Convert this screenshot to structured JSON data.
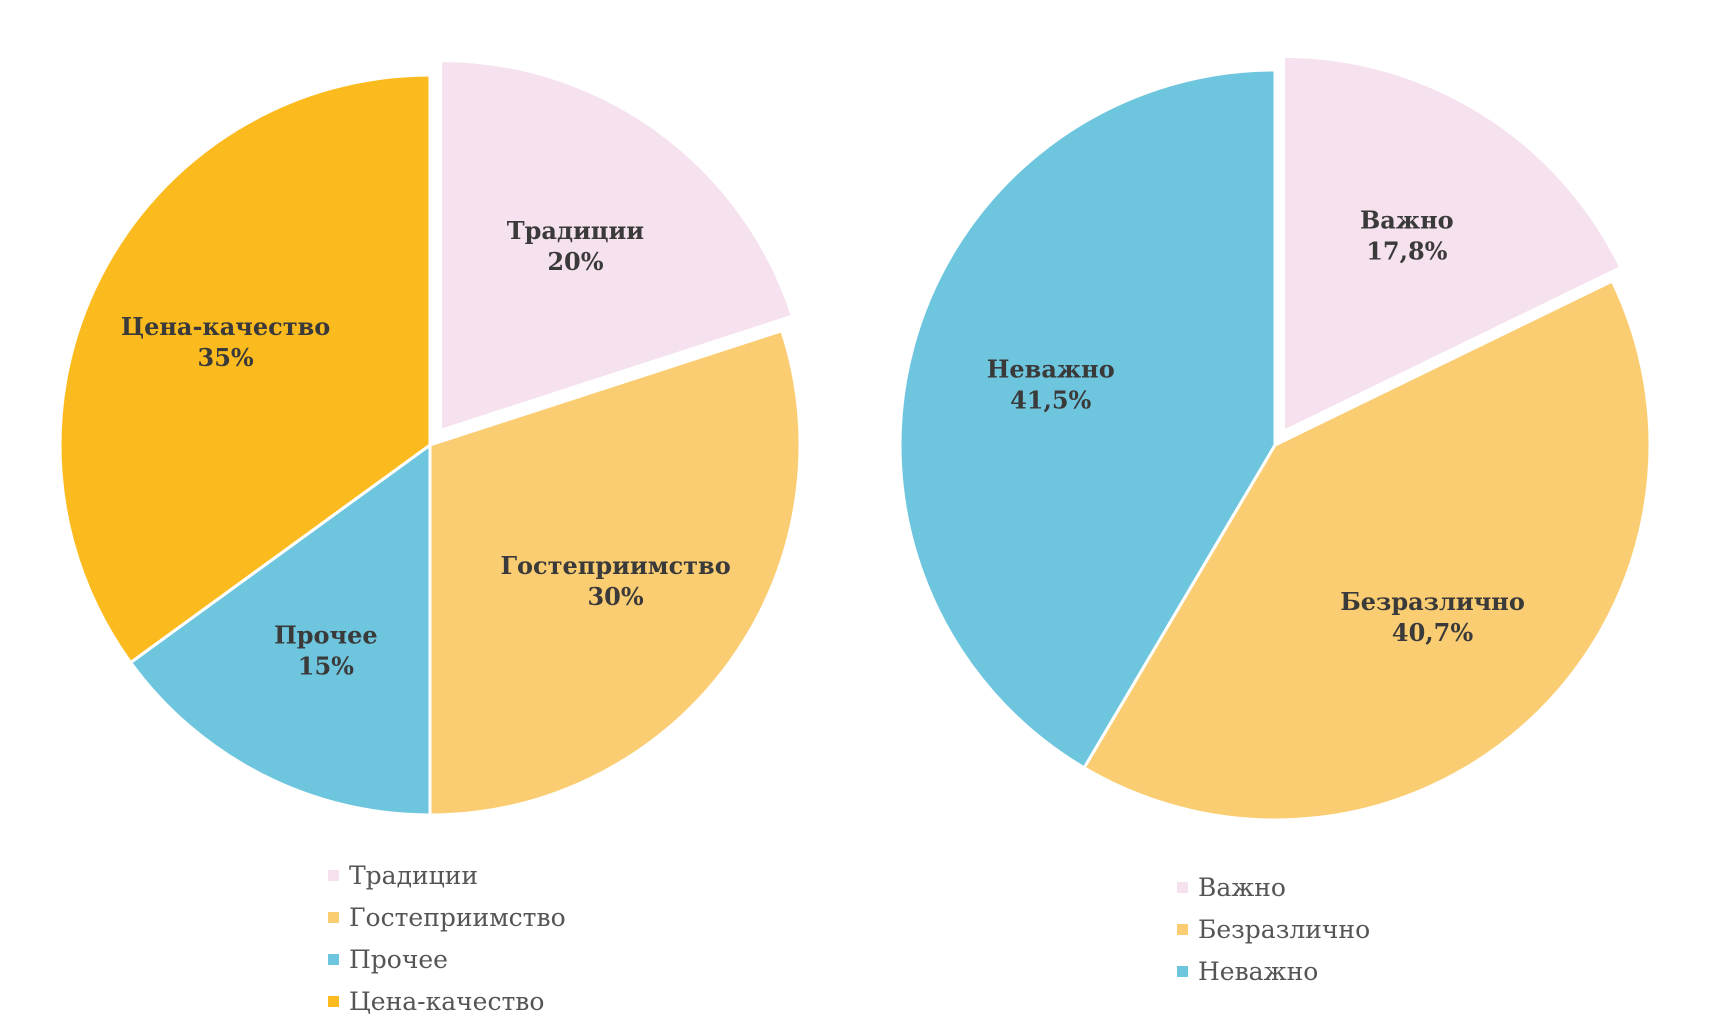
{
  "chart_data": [
    {
      "type": "pie",
      "slices": [
        {
          "label": "Традиции",
          "value": 20,
          "value_label": "20%",
          "color": "#f6e1ef",
          "exploded": true
        },
        {
          "label": "Гостеприимство",
          "value": 30,
          "value_label": "30%",
          "color": "#fbcd72",
          "exploded": false
        },
        {
          "label": "Прочее",
          "value": 15,
          "value_label": "15%",
          "color": "#6ec6de",
          "exploded": false
        },
        {
          "label": "Цена-качество",
          "value": 35,
          "value_label": "35%",
          "color": "#fbbb1f",
          "exploded": false
        }
      ],
      "legend": [
        "Традиции",
        "Гостеприимство",
        "Прочее",
        "Цена-качество"
      ],
      "legend_position": "bottom",
      "data_labels": "category and percentage inside slices"
    },
    {
      "type": "pie",
      "slices": [
        {
          "label": "Важно",
          "value": 17.8,
          "value_label": "17,8%",
          "color": "#f6e1ef",
          "exploded": true
        },
        {
          "label": "Безразлично",
          "value": 40.7,
          "value_label": "40,7%",
          "color": "#fbcd72",
          "exploded": false
        },
        {
          "label": "Неважно",
          "value": 41.5,
          "value_label": "41,5%",
          "color": "#6ec6de",
          "exploded": false
        }
      ],
      "legend": [
        "Важно",
        "Безразлично",
        "Неважно"
      ],
      "legend_position": "bottom",
      "data_labels": "category and percentage inside slices"
    }
  ]
}
